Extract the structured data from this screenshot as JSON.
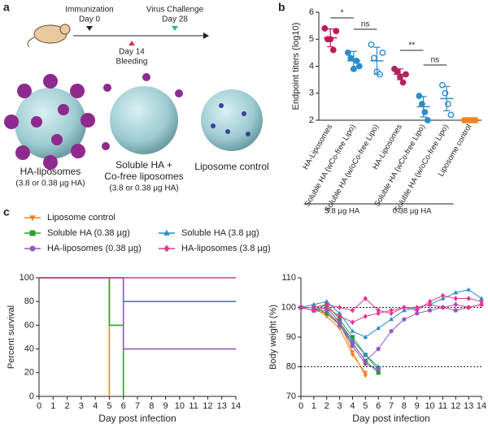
{
  "panel_labels": [
    "a",
    "b",
    "c"
  ],
  "timeline": {
    "start": "Immunization",
    "start_day": "Day 0",
    "challenge": "Virus Challenge",
    "challenge_day": "Day 28",
    "bleed_day": "Day 14",
    "bleed": "Bleeding"
  },
  "formulations": [
    {
      "name": "HA-liposomes",
      "dose": "(3.8 or 0.38 µg HA)"
    },
    {
      "name": "Soluble HA +",
      "name2": "Co-free liposomes",
      "dose": "(3.8 or 0.38 µg HA)"
    },
    {
      "name": "Liposome control"
    }
  ],
  "chart_data": [
    {
      "type": "dot",
      "y_label": "Endpoint titers (log10)",
      "categories": [
        "HA-Liposomes",
        "Soluble HA (wCo-free Lipo)",
        "Soluble HA (w/oCo-free Lipo)",
        "HA-Liposomes",
        "Soluble HA (wCo-free Lipo)",
        "Soluble HA (w/oCo-free Lipo)",
        "Liposome control"
      ],
      "groups": [
        {
          "color": "#c2185b",
          "filled": true,
          "points": [
            5.4,
            5.0,
            5.0,
            4.6,
            5.3
          ],
          "mean": 5.05,
          "sd": 0.33
        },
        {
          "color": "#2b8cce",
          "filled": true,
          "points": [
            4.5,
            4.3,
            3.9,
            4.2,
            4.0
          ],
          "mean": 4.2,
          "sd": 0.35
        },
        {
          "color": "#2b8cce",
          "filled": false,
          "points": [
            4.8,
            4.3,
            3.8,
            3.7,
            4.5
          ],
          "mean": 4.2,
          "sd": 0.5
        },
        {
          "color": "#b0245e",
          "filled": true,
          "points": [
            3.9,
            3.8,
            3.6,
            3.4,
            3.7
          ],
          "mean": 3.7,
          "sd": 0.2
        },
        {
          "color": "#2b8cce",
          "filled": true,
          "points": [
            2.9,
            2.6,
            2.3,
            2.0
          ],
          "mean": 2.5,
          "sd": 0.38
        },
        {
          "color": "#2b8cce",
          "filled": false,
          "points": [
            3.3,
            3.0,
            2.6,
            2.2
          ],
          "mean": 2.8,
          "sd": 0.45
        },
        {
          "color": "#f58220",
          "filled": true,
          "points": [
            2,
            2,
            2,
            2,
            2
          ],
          "mean": 2,
          "sd": 0
        }
      ],
      "annotations": [
        "*",
        "ns",
        "**",
        "ns"
      ],
      "group_labels": [
        "3.8 µg HA",
        "0.38 µg HA"
      ],
      "ylim": [
        2,
        6
      ],
      "yticks": [
        2,
        3,
        4,
        5,
        6
      ]
    },
    {
      "type": "step",
      "y_label": "Percent survival",
      "x_label": "Day post infection",
      "xlim": [
        0,
        14
      ],
      "xticks": [
        0,
        1,
        2,
        3,
        4,
        5,
        6,
        7,
        8,
        9,
        10,
        11,
        12,
        13,
        14
      ],
      "ylim": [
        0,
        100
      ],
      "yticks": [
        0,
        20,
        40,
        60,
        80,
        100
      ],
      "series": [
        {
          "name": "Liposome control",
          "color": "#f58220",
          "marker": "tri-down",
          "x": [
            0,
            5
          ],
          "values": [
            100,
            0
          ]
        },
        {
          "name": "Soluble HA (0.38 µg)",
          "color": "#2ca02c",
          "marker": "square",
          "x": [
            0,
            5,
            6
          ],
          "values": [
            100,
            60,
            0
          ]
        },
        {
          "name": "Soluble HA (3.8 µg)",
          "color": "#2b8cce",
          "marker": "tri-up",
          "x": [
            0,
            6,
            14
          ],
          "values": [
            100,
            80,
            80
          ]
        },
        {
          "name": "HA-liposomes (0.38 µg)",
          "color": "#8e5bc0",
          "marker": "circle",
          "x": [
            0,
            6,
            14
          ],
          "values": [
            100,
            40,
            40
          ]
        },
        {
          "name": "HA-liposomes (3.8 µg)",
          "color": "#e0388e",
          "marker": "diamond",
          "x": [
            0,
            14
          ],
          "values": [
            100,
            100
          ]
        }
      ]
    },
    {
      "type": "spaghetti",
      "y_label": "Body weight (%)",
      "x_label": "Day post infection",
      "xlim": [
        0,
        14
      ],
      "xticks": [
        0,
        1,
        2,
        3,
        4,
        5,
        6,
        7,
        8,
        9,
        10,
        11,
        12,
        13,
        14
      ],
      "ylim": [
        70,
        110
      ],
      "yticks": [
        70,
        80,
        90,
        100,
        110
      ],
      "reference_lines": [
        100,
        80
      ],
      "x": [
        0,
        1,
        2,
        3,
        4,
        5,
        6,
        7,
        8,
        9,
        10,
        11,
        12,
        13,
        14
      ],
      "groups": [
        {
          "color": "#f58220",
          "marker": "tri-down",
          "animals": [
            [
              100,
              99,
              98,
              95,
              85,
              77,
              null,
              null,
              null,
              null,
              null,
              null,
              null,
              null,
              null
            ],
            [
              100,
              100,
              97,
              93,
              84,
              78,
              null,
              null,
              null,
              null,
              null,
              null,
              null,
              null,
              null
            ]
          ]
        },
        {
          "color": "#2ca02c",
          "marker": "square",
          "animals": [
            [
              100,
              99,
              101,
              96,
              90,
              84,
              79,
              null,
              null,
              null,
              null,
              null,
              null,
              null,
              null
            ],
            [
              100,
              100,
              98,
              94,
              88,
              82,
              78,
              null,
              null,
              null,
              null,
              null,
              null,
              null,
              null
            ]
          ]
        },
        {
          "color": "#2b8cce",
          "marker": "tri-up",
          "animals": [
            [
              100,
              101,
              102,
              98,
              92,
              90,
              93,
              96,
              99,
              100,
              101,
              103,
              105,
              106,
              103
            ],
            [
              100,
              99,
              100,
              95,
              89,
              84,
              80,
              null,
              null,
              null,
              null,
              null,
              null,
              null,
              null
            ]
          ]
        },
        {
          "color": "#8e5bc0",
          "marker": "circle",
          "animals": [
            [
              100,
              99,
              100,
              95,
              88,
              82,
              86,
              92,
              96,
              98,
              99,
              100,
              99,
              100,
              101
            ],
            [
              100,
              99,
              99,
              94,
              87,
              81,
              79,
              null,
              null,
              null,
              null,
              null,
              null,
              null,
              null
            ]
          ]
        },
        {
          "color": "#e0388e",
          "marker": "diamond",
          "animals": [
            [
              100,
              100,
              101,
              100,
              99,
              103,
              99,
              98,
              100,
              99,
              102,
              104,
              103,
              103,
              102
            ],
            [
              100,
              99,
              100,
              97,
              95,
              97,
              98,
              99,
              100,
              100,
              101,
              100,
              101,
              100,
              101
            ]
          ]
        }
      ]
    }
  ]
}
